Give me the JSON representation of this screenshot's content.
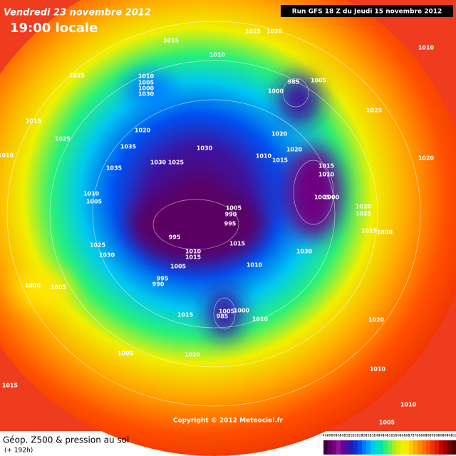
{
  "header": {
    "date": "Vendredi 23 novembre 2012",
    "time": "19:00 locale",
    "run": "Run GFS 18 Z du Jeudi 15 novembre 2012"
  },
  "copyright": "Copyright © 2012 Meteociel.fr",
  "legend": {
    "title": "Géop. Z500 & pression au sol",
    "lead": "(+ 192h)",
    "scale": [
      492,
      496,
      500,
      504,
      508,
      512,
      516,
      520,
      524,
      528,
      532,
      536,
      540,
      544,
      548,
      552,
      556,
      560,
      564,
      568,
      572,
      576,
      580,
      584,
      588,
      592,
      596,
      600,
      604,
      608,
      612
    ],
    "colors": [
      "#3c0040",
      "#5a0064",
      "#78007f",
      "#8c1496",
      "#6e00a0",
      "#3c14a0",
      "#1e1eb4",
      "#0a32d2",
      "#0050f0",
      "#0078ff",
      "#00a0ff",
      "#00c8f0",
      "#00dcc8",
      "#00e6a0",
      "#28f078",
      "#64f050",
      "#a0f028",
      "#d2f000",
      "#f0f000",
      "#ffe600",
      "#ffc800",
      "#ffaa00",
      "#ff8c00",
      "#ff6e00",
      "#ff5000",
      "#f03200",
      "#dc1e00",
      "#c80000",
      "#a00000",
      "#780000",
      "#500000"
    ]
  },
  "isobar_labels": [
    "1015",
    "1025",
    "1020",
    "1010",
    "1010",
    "1025",
    "1010",
    "1005",
    "1000",
    "1030",
    "985",
    "1000",
    "1005",
    "1025",
    "1015",
    "1020",
    "1025",
    "1035",
    "1030",
    "1020",
    "1020",
    "1010",
    "1015",
    "1010",
    "1020",
    "1035",
    "1030",
    "1025",
    "1015",
    "1010",
    "1005",
    "1000",
    "1010",
    "1005",
    "1020",
    "1025",
    "1015",
    "1030",
    "1005",
    "990",
    "995",
    "995",
    "1015",
    "1025",
    "1030",
    "1010",
    "1015",
    "1005",
    "1030",
    "1010",
    "995",
    "990",
    "1000",
    "1005",
    "1005",
    "985",
    "1000",
    "1010",
    "1015",
    "1020",
    "1005",
    "1020",
    "1010",
    "1015",
    "1010",
    "1005"
  ]
}
